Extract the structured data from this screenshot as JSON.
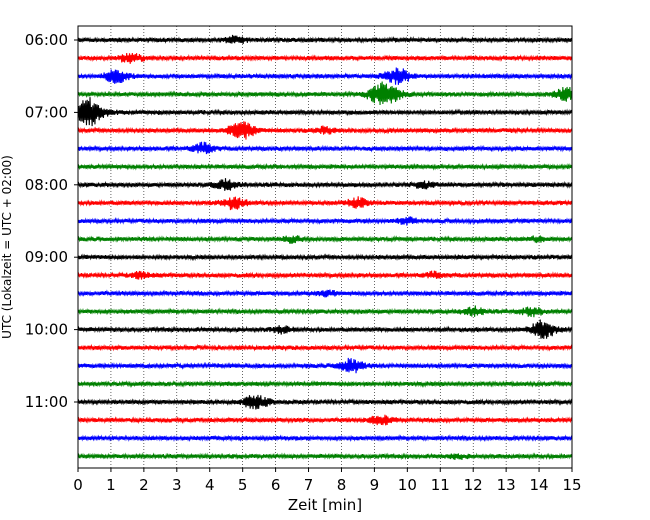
{
  "chart_data": {
    "type": "line",
    "title": "",
    "xlabel": "Zeit  [min]",
    "ylabel": "UTC (Lokalzeit = UTC + 02:00)",
    "xlim": [
      0,
      15
    ],
    "x_ticks": [
      0,
      1,
      2,
      3,
      4,
      5,
      6,
      7,
      8,
      9,
      10,
      11,
      12,
      13,
      14,
      15
    ],
    "y_tick_labels": [
      "06:00",
      "07:00",
      "08:00",
      "09:00",
      "10:00",
      "11:00"
    ],
    "trace_interval_min": 15,
    "start_time": "06:00",
    "grid": "vertical-dotted",
    "legend": "none",
    "color_cycle": [
      "#000000",
      "#ff0000",
      "#0000ff",
      "#008000"
    ],
    "traces": [
      {
        "time": "06:00",
        "color": "#000000",
        "bursts": [
          [
            4.8,
            0.7
          ]
        ]
      },
      {
        "time": "06:15",
        "color": "#ff0000",
        "bursts": [
          [
            1.6,
            1.0
          ]
        ]
      },
      {
        "time": "06:30",
        "color": "#0000ff",
        "bursts": [
          [
            1.2,
            1.4
          ],
          [
            9.7,
            1.6
          ]
        ]
      },
      {
        "time": "06:45",
        "color": "#008000",
        "bursts": [
          [
            9.3,
            2.6
          ],
          [
            14.8,
            1.3
          ]
        ]
      },
      {
        "time": "07:00",
        "color": "#000000",
        "bursts": [
          [
            0.3,
            3.0
          ]
        ]
      },
      {
        "time": "07:15",
        "color": "#ff0000",
        "bursts": [
          [
            5.0,
            1.8
          ],
          [
            7.5,
            0.6
          ]
        ]
      },
      {
        "time": "07:30",
        "color": "#0000ff",
        "bursts": [
          [
            3.8,
            1.0
          ]
        ]
      },
      {
        "time": "07:45",
        "color": "#008000",
        "bursts": []
      },
      {
        "time": "08:00",
        "color": "#000000",
        "bursts": [
          [
            4.5,
            1.1
          ],
          [
            10.5,
            0.6
          ]
        ]
      },
      {
        "time": "08:15",
        "color": "#ff0000",
        "bursts": [
          [
            4.7,
            1.2
          ],
          [
            8.5,
            1.0
          ]
        ]
      },
      {
        "time": "08:30",
        "color": "#0000ff",
        "bursts": [
          [
            10.0,
            0.6
          ]
        ]
      },
      {
        "time": "08:45",
        "color": "#008000",
        "bursts": [
          [
            6.5,
            0.6
          ],
          [
            14.0,
            0.5
          ]
        ]
      },
      {
        "time": "09:00",
        "color": "#000000",
        "bursts": []
      },
      {
        "time": "09:15",
        "color": "#ff0000",
        "bursts": [
          [
            1.9,
            0.6
          ],
          [
            10.8,
            0.5
          ]
        ]
      },
      {
        "time": "09:30",
        "color": "#0000ff",
        "bursts": [
          [
            7.6,
            0.5
          ]
        ]
      },
      {
        "time": "09:45",
        "color": "#008000",
        "bursts": [
          [
            12.0,
            0.9
          ],
          [
            13.8,
            0.9
          ]
        ]
      },
      {
        "time": "10:00",
        "color": "#000000",
        "bursts": [
          [
            14.1,
            1.8
          ],
          [
            6.2,
            0.6
          ]
        ]
      },
      {
        "time": "10:15",
        "color": "#ff0000",
        "bursts": []
      },
      {
        "time": "10:30",
        "color": "#0000ff",
        "bursts": [
          [
            8.3,
            1.4
          ]
        ]
      },
      {
        "time": "10:45",
        "color": "#008000",
        "bursts": []
      },
      {
        "time": "11:00",
        "color": "#000000",
        "bursts": [
          [
            5.4,
            1.4
          ]
        ]
      },
      {
        "time": "11:15",
        "color": "#ff0000",
        "bursts": [
          [
            9.2,
            1.0
          ]
        ]
      },
      {
        "time": "11:30",
        "color": "#0000ff",
        "bursts": []
      },
      {
        "time": "11:45",
        "color": "#008000",
        "bursts": [
          [
            11.5,
            0.4
          ]
        ]
      }
    ]
  }
}
